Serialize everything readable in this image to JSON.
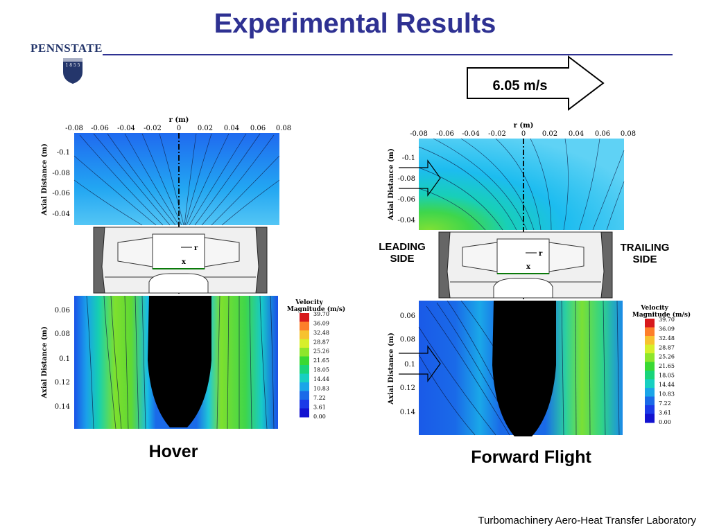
{
  "slide": {
    "title": "Experimental Results",
    "footer": "Turbomachinery Aero-Heat Transfer Laboratory",
    "logo": {
      "word": "PENNSTATE",
      "year": "1 8 5 5"
    }
  },
  "hover": {
    "caption": "Hover",
    "r_axis_title": "r (m)",
    "r_ticks": [
      "-0.08",
      "-0.06",
      "-0.04",
      "-0.02",
      "0",
      "0.02",
      "0.04",
      "0.06",
      "0.08"
    ],
    "upper_axis_title": "Axial Distance (m)",
    "upper_ticks": [
      "-0.1",
      "-0.08",
      "-0.06",
      "-0.04"
    ],
    "lower_axis_title": "Axial Distance (m)",
    "lower_ticks": [
      "0.06",
      "0.08",
      "0.1",
      "0.12",
      "0.14"
    ],
    "rotor_r_label": "r",
    "rotor_x_label": "x"
  },
  "forward": {
    "caption": "Forward Flight",
    "speed": "6.05 m/s",
    "leading": "LEADING SIDE",
    "trailing": "TRAILING SIDE",
    "r_axis_title": "r (m)",
    "r_ticks": [
      "-0.08",
      "-0.06",
      "-0.04",
      "-0.02",
      "0",
      "0.02",
      "0.04",
      "0.06",
      "0.08"
    ],
    "upper_axis_title": "Axial Distance (m)",
    "upper_ticks": [
      "-0.1",
      "-0.08",
      "-0.06",
      "-0.04"
    ],
    "lower_axis_title": "Axial Distance (m)",
    "lower_ticks": [
      "0.06",
      "0.08",
      "0.1",
      "0.12",
      "0.14"
    ],
    "rotor_r_label": "r",
    "rotor_x_label": "x"
  },
  "legend": {
    "title_line1": "Velocity",
    "title_line2": "Magnitude  (m/s)",
    "values": [
      "39.70",
      "36.09",
      "32.48",
      "28.87",
      "25.26",
      "21.65",
      "18.05",
      "14.44",
      "10.83",
      "7.22",
      "3.61",
      "0.00"
    ],
    "colors": [
      "#d7191c",
      "#fd7f2a",
      "#f7c22f",
      "#d7ef2b",
      "#8ee62b",
      "#39d933",
      "#19d47a",
      "#17cfc1",
      "#1aa5e8",
      "#1a6ae8",
      "#1a3ae8",
      "#1212d0"
    ]
  }
}
